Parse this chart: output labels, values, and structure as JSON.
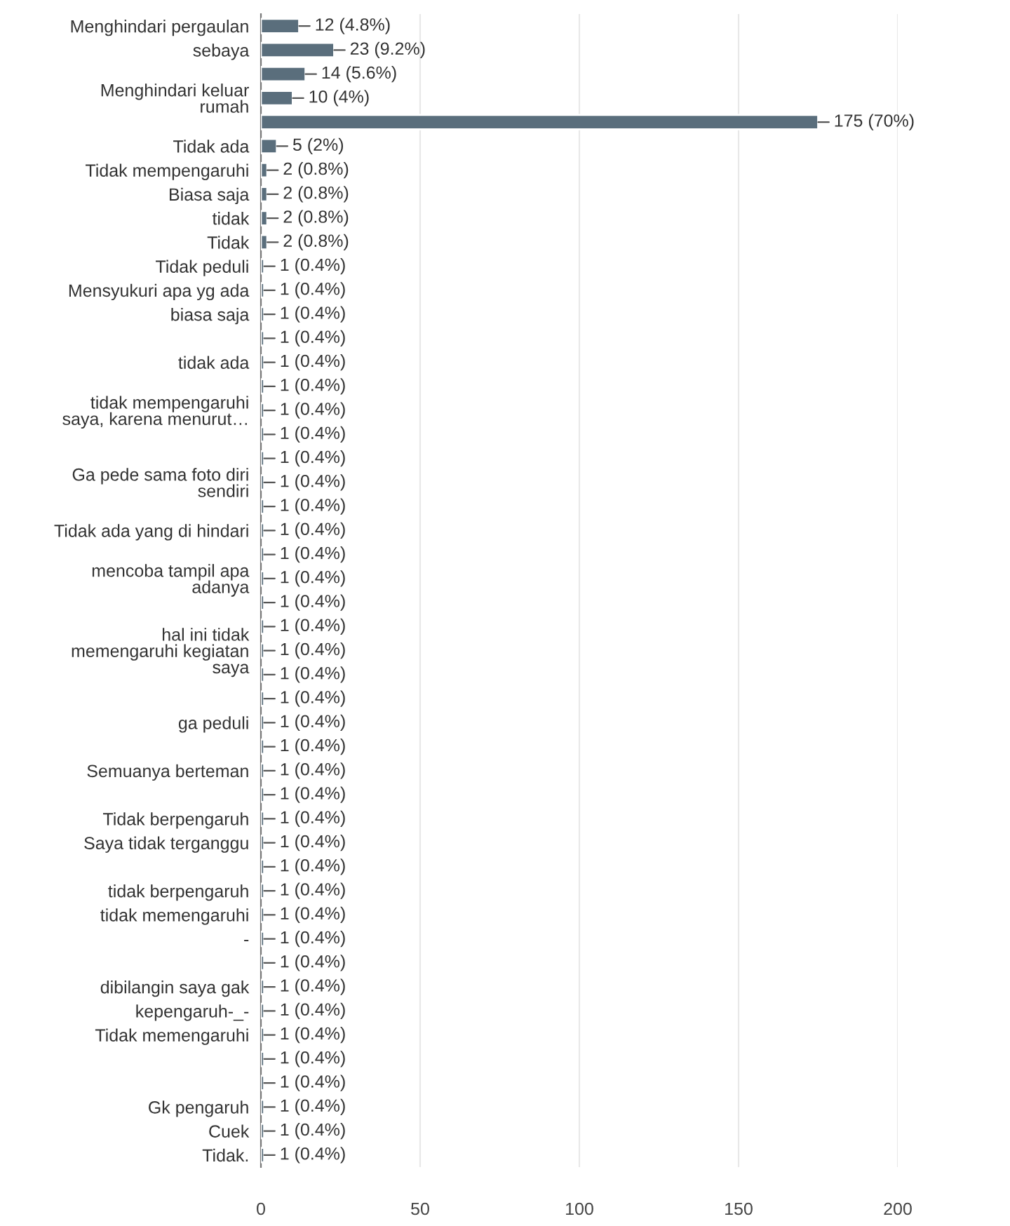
{
  "chart_data": {
    "type": "bar",
    "orientation": "horizontal",
    "categories": [
      "Menghindari pergaulan",
      "sebaya",
      null,
      "Menghindari keluar\nrumah",
      null,
      "Tidak ada",
      "Tidak mempengaruhi",
      "Biasa saja",
      "tidak",
      "Tidak",
      "Tidak peduli",
      "Mensyukuri apa yg ada",
      "biasa saja",
      null,
      "tidak ada",
      null,
      "tidak mempengaruhi\nsaya, karena menurut…",
      null,
      null,
      "Ga pede sama foto diri\nsendiri",
      null,
      "Tidak ada yang di hindari",
      null,
      "mencoba tampil apa\nadanya",
      null,
      null,
      "hal ini tidak\nmemengaruhi kegiatan\nsaya",
      null,
      null,
      "ga peduli",
      null,
      "Semuanya berteman",
      null,
      "Tidak berpengaruh",
      "Saya tidak terganggu",
      null,
      "tidak berpengaruh",
      "tidak memengaruhi",
      "-",
      null,
      "dibilangin saya gak",
      "kepengaruh-_-",
      "Tidak memengaruhi",
      null,
      null,
      "Gk pengaruh",
      "Cuek",
      "Tidak."
    ],
    "values": [
      12,
      23,
      14,
      10,
      175,
      5,
      2,
      2,
      2,
      2,
      1,
      1,
      1,
      1,
      1,
      1,
      1,
      1,
      1,
      1,
      1,
      1,
      1,
      1,
      1,
      1,
      1,
      1,
      1,
      1,
      1,
      1,
      1,
      1,
      1,
      1,
      1,
      1,
      1,
      1,
      1,
      1,
      1,
      1,
      1,
      1,
      1,
      1
    ],
    "value_labels": [
      "12 (4.8%)",
      "23 (9.2%)",
      "14 (5.6%)",
      "10 (4%)",
      "175 (70%)",
      "5 (2%)",
      "2 (0.8%)",
      "2 (0.8%)",
      "2 (0.8%)",
      "2 (0.8%)",
      "1 (0.4%)",
      "1 (0.4%)",
      "1 (0.4%)",
      "1 (0.4%)",
      "1 (0.4%)",
      "1 (0.4%)",
      "1 (0.4%)",
      "1 (0.4%)",
      "1 (0.4%)",
      "1 (0.4%)",
      "1 (0.4%)",
      "1 (0.4%)",
      "1 (0.4%)",
      "1 (0.4%)",
      "1 (0.4%)",
      "1 (0.4%)",
      "1 (0.4%)",
      "1 (0.4%)",
      "1 (0.4%)",
      "1 (0.4%)",
      "1 (0.4%)",
      "1 (0.4%)",
      "1 (0.4%)",
      "1 (0.4%)",
      "1 (0.4%)",
      "1 (0.4%)",
      "1 (0.4%)",
      "1 (0.4%)",
      "1 (0.4%)",
      "1 (0.4%)",
      "1 (0.4%)",
      "1 (0.4%)",
      "1 (0.4%)",
      "1 (0.4%)",
      "1 (0.4%)",
      "1 (0.4%)",
      "1 (0.4%)",
      "1 (0.4%)"
    ],
    "color": "#5a6e7c",
    "xlim": [
      0,
      200
    ],
    "xticks": [
      0,
      50,
      100,
      150,
      200
    ],
    "grid": "x"
  }
}
